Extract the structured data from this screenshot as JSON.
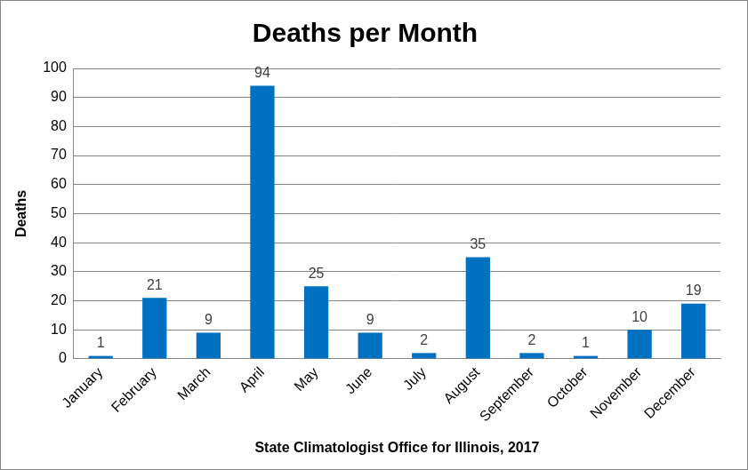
{
  "chart_data": {
    "type": "bar",
    "title": "Deaths per Month",
    "categories": [
      "January",
      "February",
      "March",
      "April",
      "May",
      "June",
      "July",
      "August",
      "September",
      "October",
      "November",
      "December"
    ],
    "values": [
      1,
      21,
      9,
      94,
      25,
      9,
      2,
      35,
      2,
      1,
      10,
      19
    ],
    "color": "#0070c0",
    "x_label": "State Climatologist Office for Illinois, 2017",
    "y_label": "Deaths",
    "ylim": [
      0,
      100
    ],
    "yticks": [
      0,
      10,
      20,
      30,
      40,
      50,
      60,
      70,
      80,
      90,
      100
    ],
    "grid": true,
    "data_labels": true
  }
}
